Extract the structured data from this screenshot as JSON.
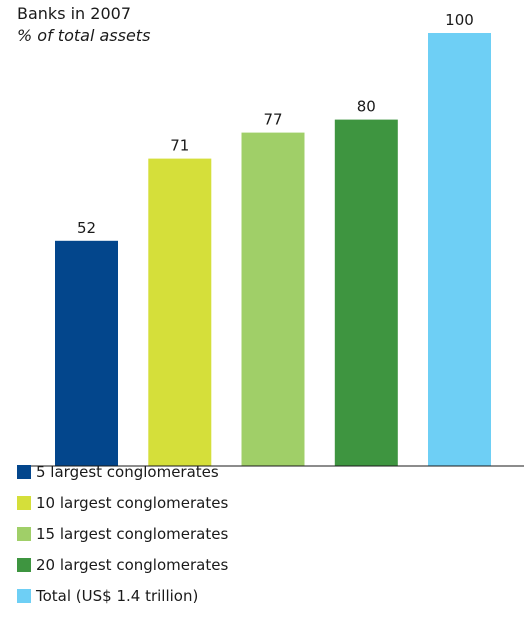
{
  "chart_data": {
    "type": "bar",
    "title": "Banks in 2007",
    "subtitle": "% of total assets",
    "xlabel": "",
    "ylabel": "",
    "ylim": [
      0,
      100
    ],
    "grid": false,
    "legend_position": "bottom",
    "categories": [
      "5 largest conglomerates",
      "10 largest conglomerates",
      "15 largest conglomerates",
      "20 largest conglomerates",
      "Total (US$ 1.4 trillion)"
    ],
    "values": [
      52,
      71,
      77,
      80,
      100
    ],
    "value_labels": [
      "52",
      "71",
      "77",
      "80",
      "100"
    ],
    "colors": [
      "#03468c",
      "#d5df3a",
      "#a0cf68",
      "#3e9540",
      "#6ecff5"
    ]
  }
}
